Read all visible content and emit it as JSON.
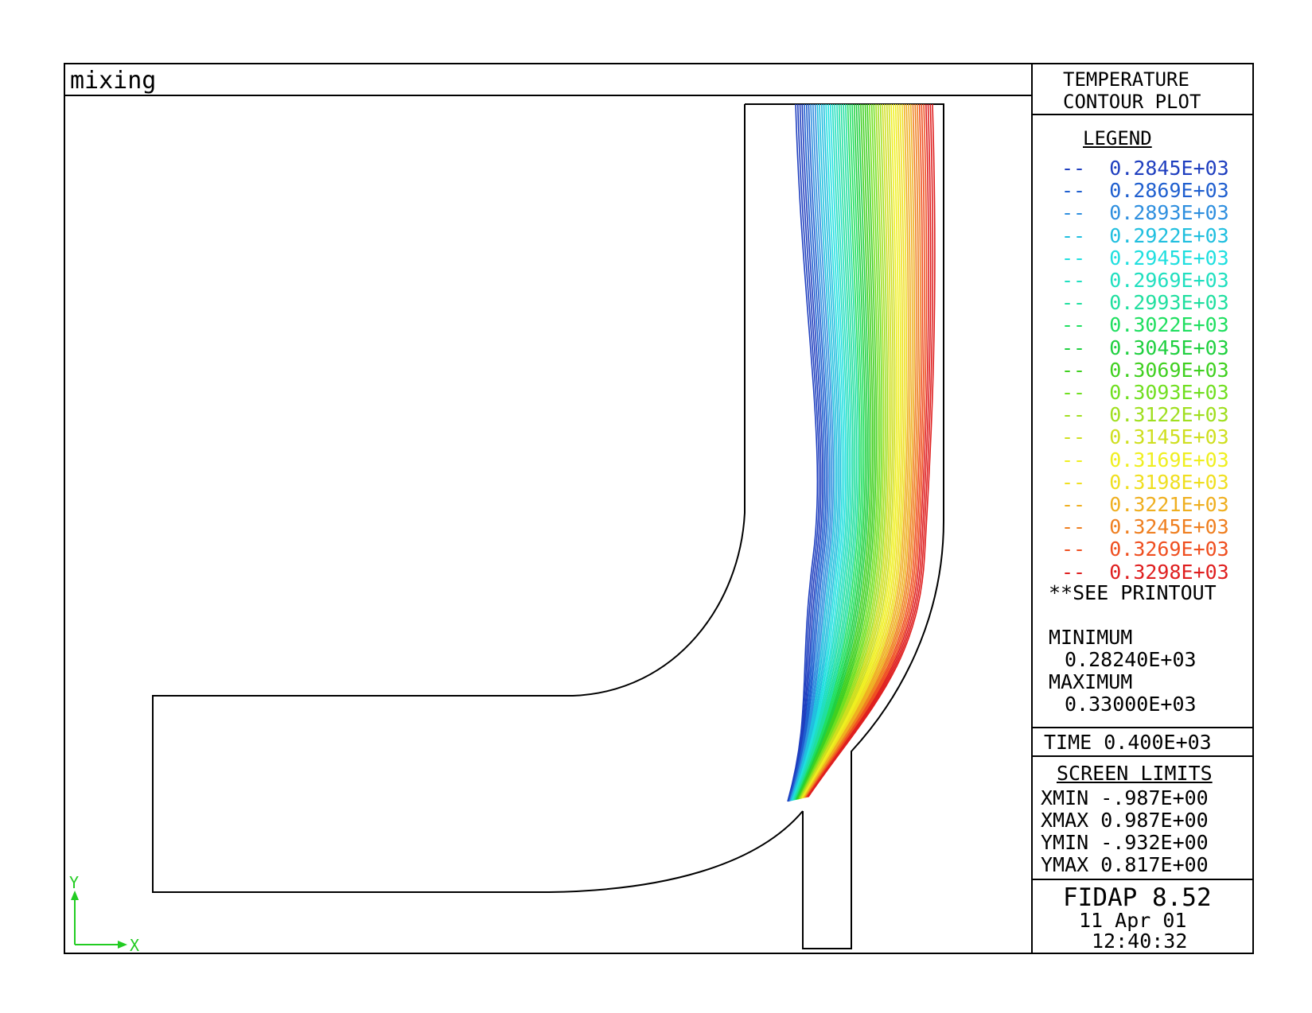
{
  "plot_title": "mixing",
  "panel": {
    "header_line1": "TEMPERATURE",
    "header_line2": "CONTOUR PLOT",
    "legend_title": "LEGEND",
    "legend_items": [
      {
        "dash": "--",
        "value": "0.2845E+03",
        "color": "#1f3fbf"
      },
      {
        "dash": "--",
        "value": "0.2869E+03",
        "color": "#1f5fcf"
      },
      {
        "dash": "--",
        "value": "0.2893E+03",
        "color": "#2f8fdf"
      },
      {
        "dash": "--",
        "value": "0.2922E+03",
        "color": "#20bfdf"
      },
      {
        "dash": "--",
        "value": "0.2945E+03",
        "color": "#20dfdf"
      },
      {
        "dash": "--",
        "value": "0.2969E+03",
        "color": "#20dfbf"
      },
      {
        "dash": "--",
        "value": "0.2993E+03",
        "color": "#20df9f"
      },
      {
        "dash": "--",
        "value": "0.3022E+03",
        "color": "#20df60"
      },
      {
        "dash": "--",
        "value": "0.3045E+03",
        "color": "#20d040"
      },
      {
        "dash": "--",
        "value": "0.3069E+03",
        "color": "#40d020"
      },
      {
        "dash": "--",
        "value": "0.3093E+03",
        "color": "#70df20"
      },
      {
        "dash": "--",
        "value": "0.3122E+03",
        "color": "#a0df20"
      },
      {
        "dash": "--",
        "value": "0.3145E+03",
        "color": "#cfdf20"
      },
      {
        "dash": "--",
        "value": "0.3169E+03",
        "color": "#efef20"
      },
      {
        "dash": "--",
        "value": "0.3198E+03",
        "color": "#efdf20"
      },
      {
        "dash": "--",
        "value": "0.3221E+03",
        "color": "#efaf20"
      },
      {
        "dash": "--",
        "value": "0.3245E+03",
        "color": "#ef7f20"
      },
      {
        "dash": "--",
        "value": "0.3269E+03",
        "color": "#ef4f20"
      },
      {
        "dash": "--",
        "value": "0.3298E+03",
        "color": "#df1f1f"
      }
    ],
    "see_printout": "**SEE PRINTOUT",
    "minimum_label": "MINIMUM",
    "minimum_value": "0.28240E+03",
    "maximum_label": "MAXIMUM",
    "maximum_value": "0.33000E+03",
    "time": "TIME 0.400E+03",
    "screen_limits_title": "SCREEN LIMITS",
    "xmin": "XMIN -.987E+00",
    "xmax": "XMAX 0.987E+00",
    "ymin": "YMIN -.932E+00",
    "ymax": "YMAX 0.817E+00",
    "software": "FIDAP 8.52",
    "date": "11 Apr 01",
    "clock": "12:40:32"
  },
  "axes": {
    "y_label": "Y",
    "x_label": "X",
    "axis_color": "#22cc22"
  }
}
